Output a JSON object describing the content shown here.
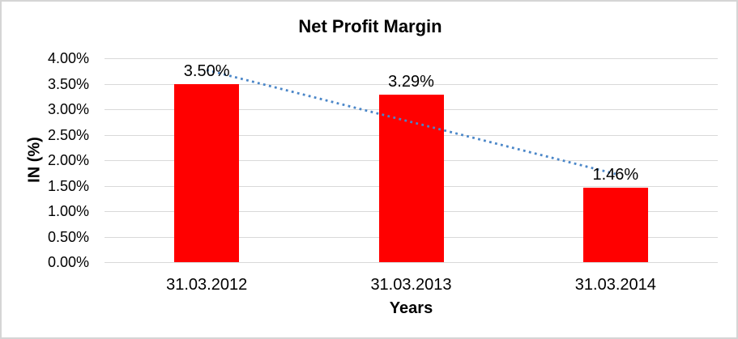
{
  "chart_data": {
    "type": "bar",
    "title": "Net Profit Margin",
    "xlabel": "Years",
    "ylabel": "IN (%)",
    "categories": [
      "31.03.2012",
      "31.03.2013",
      "31.03.2014"
    ],
    "values": [
      3.5,
      3.29,
      1.46
    ],
    "data_labels": [
      "3.50%",
      "3.29%",
      "1.46%"
    ],
    "y_ticks": [
      "4.00%",
      "3.50%",
      "3.00%",
      "2.50%",
      "2.00%",
      "1.50%",
      "1.00%",
      "0.50%",
      "0.00%"
    ],
    "ylim": [
      0,
      4
    ],
    "grid": true,
    "legend": "none",
    "bar_color": "#ff0000",
    "gridline_color": "#d9d9d9",
    "trendline": {
      "type": "linear",
      "style": "dotted",
      "color": "#4a86c8",
      "start_value": 3.77,
      "end_value": 1.73
    }
  }
}
